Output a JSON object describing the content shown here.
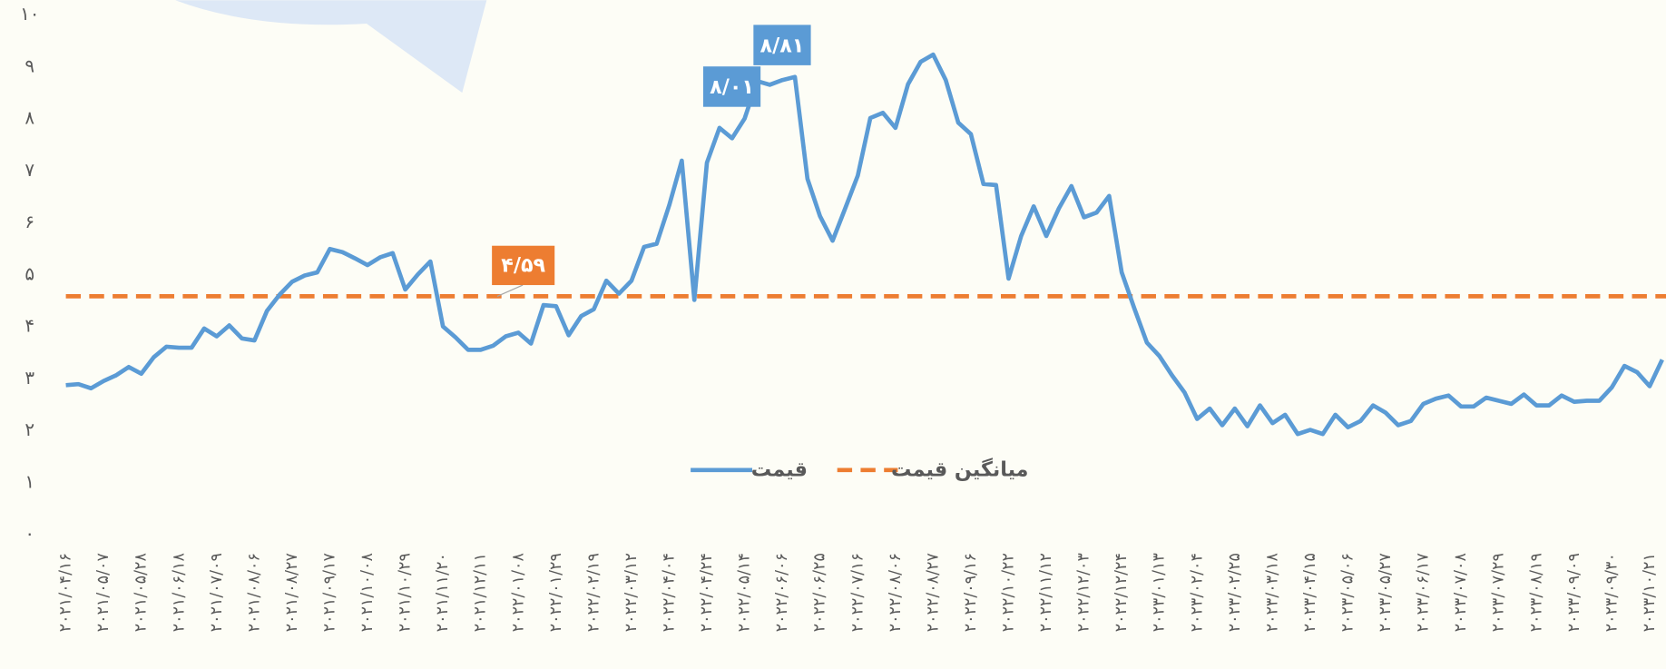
{
  "chart_data": {
    "type": "line",
    "ylim": [
      0,
      10
    ],
    "yticks": [
      {
        "value": 0,
        "label": "۰"
      },
      {
        "value": 1,
        "label": "۱"
      },
      {
        "value": 2,
        "label": "۲"
      },
      {
        "value": 3,
        "label": "۳"
      },
      {
        "value": 4,
        "label": "۴"
      },
      {
        "value": 5,
        "label": "۵"
      },
      {
        "value": 6,
        "label": "۶"
      },
      {
        "value": 7,
        "label": "۷"
      },
      {
        "value": 8,
        "label": "۸"
      },
      {
        "value": 9,
        "label": "۹"
      },
      {
        "value": 10,
        "label": "۱۰"
      }
    ],
    "grid": false,
    "legend": "bottom",
    "categories": [
      "۲۰۲۱/۰۴/۱۶",
      null,
      null,
      "۲۰۲۱/۰۵/۰۷",
      null,
      null,
      "۲۰۲۱/۰۵/۲۸",
      null,
      null,
      "۲۰۲۱/۰۶/۱۸",
      null,
      null,
      "۲۰۲۱/۰۷/۰۹",
      null,
      null,
      "۲۰۲۱/۰۸/۰۶",
      null,
      null,
      "۲۰۲۱/۰۸/۲۷",
      null,
      null,
      "۲۰۲۱/۰۹/۱۷",
      null,
      null,
      "۲۰۲۱/۱۰/۰۸",
      null,
      null,
      "۲۰۲۱/۱۰/۲۹",
      null,
      null,
      "۲۰۲۱/۱۱/۲۰",
      null,
      null,
      "۲۰۲۱/۱۲/۱۱",
      null,
      null,
      "۲۰۲۲/۰۱/۰۸",
      null,
      null,
      "۲۰۲۲/۰۱/۲۹",
      null,
      null,
      "۲۰۲۲/۰۲/۱۹",
      null,
      null,
      "۲۰۲۲/۰۳/۱۲",
      null,
      null,
      "۲۰۲۲/۰۴/۰۴",
      null,
      null,
      "۲۰۲۲/۰۴/۲۴",
      null,
      null,
      "۲۰۲۲/۰۵/۱۴",
      null,
      null,
      "۲۰۲۲/۰۶/۰۶",
      null,
      null,
      "۲۰۲۲/۰۶/۲۵",
      null,
      null,
      "۲۰۲۲/۰۷/۱۶",
      null,
      null,
      "۲۰۲۲/۰۸/۰۶",
      null,
      null,
      "۲۰۲۲/۰۸/۲۷",
      null,
      null,
      "۲۰۲۲/۰۹/۱۶",
      null,
      null,
      "۲۰۲۲/۱۰/۲۲",
      null,
      null,
      "۲۰۲۲/۱۱/۱۲",
      null,
      null,
      "۲۰۲۲/۱۲/۰۳",
      null,
      null,
      "۲۰۲۲/۱۲/۲۴",
      null,
      null,
      "۲۰۲۳/۰۱/۱۳",
      null,
      null,
      "۲۰۲۳/۰۲/۰۴",
      null,
      null,
      "۲۰۲۳/۰۲/۲۵",
      null,
      null,
      "۲۰۲۳/۰۳/۱۸",
      null,
      null,
      "۲۰۲۳/۰۴/۱۵",
      null,
      null,
      "۲۰۲۳/۰۵/۰۶",
      null,
      null,
      "۲۰۲۳/۰۵/۲۷",
      null,
      null,
      "۲۰۲۳/۰۶/۱۷",
      null,
      null,
      "۲۰۲۳/۰۷/۰۸",
      null,
      null,
      "۲۰۲۳/۰۷/۲۹",
      null,
      null,
      "۲۰۲۳/۰۸/۱۹",
      null,
      null,
      "۲۰۲۳/۰۹/۰۹",
      null,
      null,
      "۲۰۲۳/۰۹/۳۰",
      null,
      null,
      "۲۰۲۳/۱۰/۲۱",
      null
    ],
    "series": [
      {
        "name": "قیمت",
        "color": "#5b9bd5",
        "values": [
          2.88,
          2.9,
          2.82,
          2.96,
          3.07,
          3.23,
          3.1,
          3.42,
          3.62,
          3.6,
          3.6,
          3.97,
          3.82,
          4.03,
          3.78,
          3.74,
          4.31,
          4.62,
          4.87,
          4.99,
          5.05,
          5.5,
          5.44,
          5.32,
          5.19,
          5.34,
          5.42,
          4.72,
          5.01,
          5.26,
          4.01,
          3.8,
          3.56,
          3.56,
          3.64,
          3.82,
          3.89,
          3.68,
          4.42,
          4.4,
          3.84,
          4.21,
          4.34,
          4.89,
          4.64,
          4.89,
          5.54,
          5.6,
          6.34,
          7.2,
          4.52,
          7.16,
          7.83,
          7.63,
          8.01,
          8.73,
          8.66,
          8.75,
          8.81,
          6.85,
          6.13,
          5.66,
          6.28,
          6.91,
          8.02,
          8.12,
          7.83,
          8.67,
          9.1,
          9.24,
          8.75,
          7.93,
          7.71,
          6.75,
          6.73,
          4.93,
          5.75,
          6.32,
          5.75,
          6.28,
          6.71,
          6.11,
          6.2,
          6.52,
          5.05,
          4.36,
          3.7,
          3.44,
          3.07,
          2.74,
          2.23,
          2.43,
          2.11,
          2.43,
          2.09,
          2.49,
          2.15,
          2.31,
          1.94,
          2.02,
          1.94,
          2.31,
          2.07,
          2.19,
          2.49,
          2.35,
          2.11,
          2.19,
          2.52,
          2.62,
          2.68,
          2.47,
          2.47,
          2.64,
          2.58,
          2.52,
          2.7,
          2.49,
          2.49,
          2.68,
          2.56,
          2.58,
          2.58,
          2.84,
          3.25,
          3.13,
          2.86,
          3.37
        ],
        "value_labels": [
          null,
          null,
          null,
          null,
          null,
          null,
          null,
          null,
          null,
          null,
          null,
          null,
          null,
          null,
          null,
          null,
          null,
          null,
          null,
          null,
          null,
          null,
          null,
          null,
          null,
          null,
          null,
          null,
          null,
          null,
          null,
          null,
          null,
          null,
          null,
          null,
          null,
          null,
          null,
          null,
          null,
          null,
          null,
          null,
          null,
          null,
          null,
          null,
          null,
          null,
          null,
          null,
          null,
          null,
          "۸/۰۱",
          null,
          null,
          null,
          "۸/۸۱",
          null,
          null,
          null,
          null,
          null,
          null,
          null,
          null,
          null,
          null,
          null,
          null,
          null,
          null,
          null,
          null,
          null,
          null,
          null,
          null,
          null,
          null,
          null,
          null,
          null,
          null,
          null,
          null,
          null,
          null,
          null,
          null,
          null,
          null,
          null,
          null,
          null,
          null,
          null,
          null,
          null,
          null,
          null,
          null,
          null,
          null,
          null,
          null,
          null,
          null,
          null,
          null,
          null,
          null,
          null,
          null,
          null,
          null,
          null,
          null,
          null,
          null,
          null,
          null,
          null,
          null,
          null,
          null,
          null
        ]
      }
    ],
    "reference_line": {
      "name": "میانگین قیمت",
      "color": "#ed7d31",
      "value": 4.59,
      "value_label": "۴/۵۹"
    }
  }
}
